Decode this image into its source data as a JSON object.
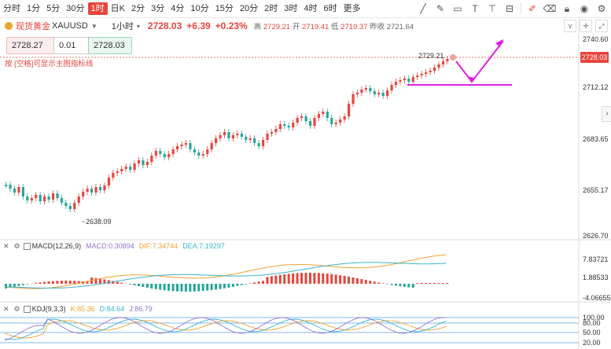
{
  "toolbar": {
    "timeframes": [
      "分时",
      "1分",
      "5分",
      "30分",
      "1时",
      "日K",
      "2分",
      "3分",
      "4分",
      "10分",
      "15分",
      "20分",
      "2时",
      "3时",
      "4时",
      "6时",
      "更多"
    ],
    "active": "1时",
    "icons": [
      "trend-line-icon",
      "brush-icon",
      "rectangle-icon",
      "text-icon",
      "measure-icon",
      "magnet-icon",
      "eraser-icon",
      "lock-icon",
      "eye-icon"
    ]
  },
  "header": {
    "name": "现货黄金",
    "code": "XAUUSD",
    "period": "1小时",
    "price": "2728.03",
    "change": "+6.39",
    "percent": "+0.23%",
    "high_label": "高",
    "high": "2729.21",
    "open_label": "开",
    "open": "2719.41",
    "low_label": "低",
    "low": "2719.37",
    "prev_label": "昨收",
    "prev": "2721.64"
  },
  "order": {
    "sell": "2728.27",
    "qty": "0.01",
    "buy": "2728.03"
  },
  "hint": "按 [空格]可显示主图指标线",
  "price_axis": {
    "labels": [
      "2740.60",
      "2712.12",
      "2683.65",
      "2655.17",
      "2626.70"
    ],
    "current": "2728.03"
  },
  "annotations": {
    "high_label": "2729.21",
    "low_label": "2638.09"
  },
  "macd": {
    "title": "MACD(12,26,9)",
    "macd": "MACD:0.30894",
    "dif": "DIF:7.34744",
    "dea": "DEA:7.19297",
    "axis": [
      "7.83721",
      "1.88533",
      "-4.06655"
    ]
  },
  "kdj": {
    "title": "KDJ(9,3,3)",
    "k": "K:85.36",
    "d": "D:84.64",
    "j": "J:86.79",
    "axis": [
      "100.00",
      "80.00",
      "50.00",
      "20.00"
    ]
  },
  "colors": {
    "up": "#e8453c",
    "down": "#26a69a",
    "dif": "#f0a030",
    "dea": "#3bb4c8",
    "annotation": "#e020e0"
  }
}
